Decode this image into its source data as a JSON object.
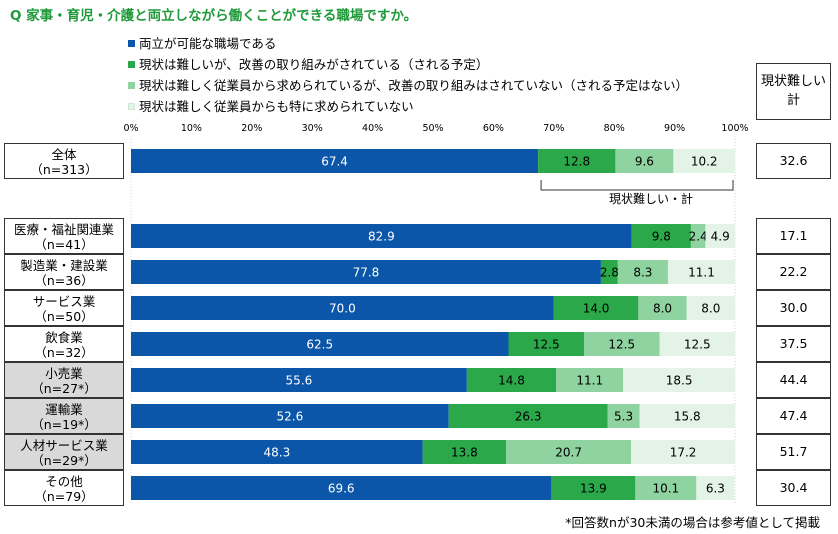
{
  "title": "Q 家事・育児・介護と両立しながら働くことができる職場ですか。",
  "legend": [
    {
      "label": "両立が可能な職場である",
      "color": "#0b56a8"
    },
    {
      "label": "現状は難しいが、改善の取り組みがされている（される予定）",
      "color": "#2aa84a"
    },
    {
      "label": "現状は難しく従業員から求められているが、改善の取り組みはされていない（される予定はない）",
      "color": "#8ed3a0"
    },
    {
      "label": "現状は難しく従業員からも特に求められていない",
      "color": "#e3f4e6"
    }
  ],
  "right_header": [
    "現状難しい",
    "計"
  ],
  "bracket_label": "現状難しい・計",
  "footnote": "*回答数nが30未満の場合は参考値として掲載",
  "chart_data": {
    "type": "bar",
    "orientation": "horizontal",
    "stacked": true,
    "xlim": [
      0,
      100
    ],
    "xticks": [
      "0%",
      "10%",
      "20%",
      "30%",
      "40%",
      "50%",
      "60%",
      "70%",
      "80%",
      "90%",
      "100%"
    ],
    "series": [
      {
        "name": "両立が可能な職場である",
        "color": "#0b56a8"
      },
      {
        "name": "現状は難しいが、改善の取り組みがされている（される予定）",
        "color": "#2aa84a"
      },
      {
        "name": "現状は難しく従業員から求められているが、改善の取り組みはされていない（される予定はない）",
        "color": "#8ed3a0"
      },
      {
        "name": "現状は難しく従業員からも特に求められていない",
        "color": "#e3f4e6"
      }
    ],
    "rows": [
      {
        "name": "全体",
        "n": "（n=313）",
        "values": [
          67.4,
          12.8,
          9.6,
          10.2
        ],
        "labels": [
          "67.4",
          "12.8",
          "9.6",
          "10.2"
        ],
        "total": "32.6",
        "shaded": false
      },
      {
        "name": "医療・福祉関連業",
        "n": "（n=41）",
        "values": [
          82.9,
          9.8,
          2.4,
          4.9
        ],
        "labels": [
          "82.9",
          "9.8",
          "2.4",
          "4.9"
        ],
        "total": "17.1",
        "shaded": false
      },
      {
        "name": "製造業・建設業",
        "n": "（n=36）",
        "values": [
          77.8,
          2.8,
          8.3,
          11.1
        ],
        "labels": [
          "77.8",
          "2.8",
          "8.3",
          "11.1"
        ],
        "total": "22.2",
        "shaded": false
      },
      {
        "name": "サービス業",
        "n": "（n=50）",
        "values": [
          70.0,
          14.0,
          8.0,
          8.0
        ],
        "labels": [
          "70.0",
          "14.0",
          "8.0",
          "8.0"
        ],
        "total": "30.0",
        "shaded": false
      },
      {
        "name": "飲食業",
        "n": "（n=32）",
        "values": [
          62.5,
          12.5,
          12.5,
          12.5
        ],
        "labels": [
          "62.5",
          "12.5",
          "12.5",
          "12.5"
        ],
        "total": "37.5",
        "shaded": false
      },
      {
        "name": "小売業",
        "n": "（n=27*）",
        "values": [
          55.6,
          14.8,
          11.1,
          18.5
        ],
        "labels": [
          "55.6",
          "14.8",
          "11.1",
          "18.5"
        ],
        "total": "44.4",
        "shaded": true
      },
      {
        "name": "運輸業",
        "n": "（n=19*）",
        "values": [
          52.6,
          26.3,
          5.3,
          15.8
        ],
        "labels": [
          "52.6",
          "26.3",
          "5.3",
          "15.8"
        ],
        "total": "47.4",
        "shaded": true
      },
      {
        "name": "人材サービス業",
        "n": "（n=29*）",
        "values": [
          48.3,
          13.8,
          20.7,
          17.2
        ],
        "labels": [
          "48.3",
          "13.8",
          "20.7",
          "17.2"
        ],
        "total": "51.7",
        "shaded": true
      },
      {
        "name": "その他",
        "n": "（n=79）",
        "values": [
          69.6,
          13.9,
          10.1,
          6.3
        ],
        "labels": [
          "69.6",
          "13.9",
          "10.1",
          "6.3"
        ],
        "total": "30.4",
        "shaded": false
      }
    ]
  }
}
